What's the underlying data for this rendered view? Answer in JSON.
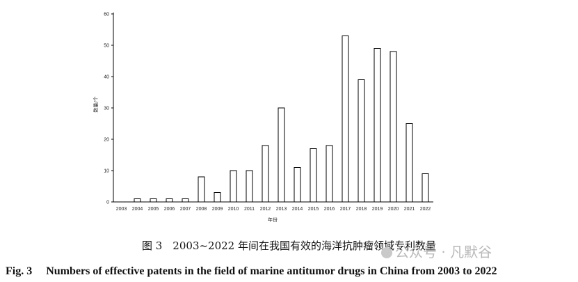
{
  "chart_data": {
    "type": "bar",
    "categories": [
      "2003",
      "2004",
      "2005",
      "2006",
      "2007",
      "2008",
      "2009",
      "2010",
      "2011",
      "2012",
      "2013",
      "2014",
      "2015",
      "2016",
      "2017",
      "2018",
      "2019",
      "2020",
      "2021",
      "2022"
    ],
    "values": [
      0,
      1,
      1,
      1,
      1,
      8,
      3,
      10,
      10,
      18,
      30,
      11,
      17,
      18,
      53,
      39,
      49,
      48,
      25,
      9
    ],
    "ylabel": "数量/个",
    "xlabel": "年份",
    "ylim": [
      0,
      60
    ],
    "yticks": [
      0,
      10,
      20,
      30,
      40,
      50,
      60
    ],
    "grid": false,
    "bar_fill": "#ffffff",
    "bar_stroke": "#000000"
  },
  "caption": {
    "cn": "图 3　2003~2022 年间在我国有效的海洋抗肿瘤领域专利数量",
    "en": "Fig. 3　 Numbers of effective patents in the field of marine antitumor drugs in China from 2003 to 2022"
  },
  "watermark": {
    "text": "公众号 · 凡默谷"
  }
}
